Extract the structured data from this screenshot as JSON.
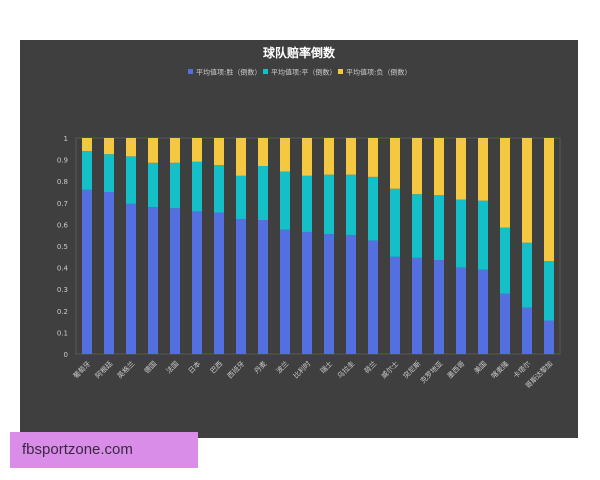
{
  "chart_data": {
    "type": "bar",
    "stacked": true,
    "title": "球队赔率倒数",
    "legend_position": "top",
    "ylim": [
      0,
      1
    ],
    "yticks": [
      "0",
      "0.1",
      "0.2",
      "0.3",
      "0.4",
      "0.5",
      "0.6",
      "0.7",
      "0.8",
      "0.9",
      "1"
    ],
    "grid": false,
    "categories": [
      "葡萄牙",
      "阿根廷",
      "英格兰",
      "德国",
      "法国",
      "日本",
      "巴西",
      "西班牙",
      "丹麦",
      "波兰",
      "比利时",
      "瑞士",
      "乌拉圭",
      "荷兰",
      "威尔士",
      "突尼斯",
      "克罗地亚",
      "墨西哥",
      "美国",
      "喀麦隆",
      "卡塔尔",
      "哥斯达黎加"
    ],
    "series": [
      {
        "name": "平均值项:胜（倒数）",
        "color": "#5470e0",
        "values": [
          0.76,
          0.75,
          0.695,
          0.68,
          0.675,
          0.66,
          0.655,
          0.625,
          0.62,
          0.575,
          0.565,
          0.555,
          0.55,
          0.525,
          0.45,
          0.445,
          0.435,
          0.4,
          0.39,
          0.28,
          0.215,
          0.155
        ]
      },
      {
        "name": "平均值项:平（倒数）",
        "color": "#14bfc8",
        "values": [
          0.18,
          0.175,
          0.22,
          0.205,
          0.21,
          0.23,
          0.22,
          0.2,
          0.25,
          0.27,
          0.26,
          0.275,
          0.28,
          0.295,
          0.315,
          0.295,
          0.3,
          0.315,
          0.32,
          0.305,
          0.3,
          0.275
        ]
      },
      {
        "name": "平均值项:负（倒数）",
        "color": "#f5c842",
        "values": [
          0.06,
          0.075,
          0.085,
          0.115,
          0.115,
          0.11,
          0.125,
          0.175,
          0.13,
          0.155,
          0.175,
          0.17,
          0.17,
          0.18,
          0.235,
          0.26,
          0.265,
          0.285,
          0.29,
          0.415,
          0.485,
          0.57
        ]
      }
    ]
  },
  "watermark": "fbsportzone.com"
}
